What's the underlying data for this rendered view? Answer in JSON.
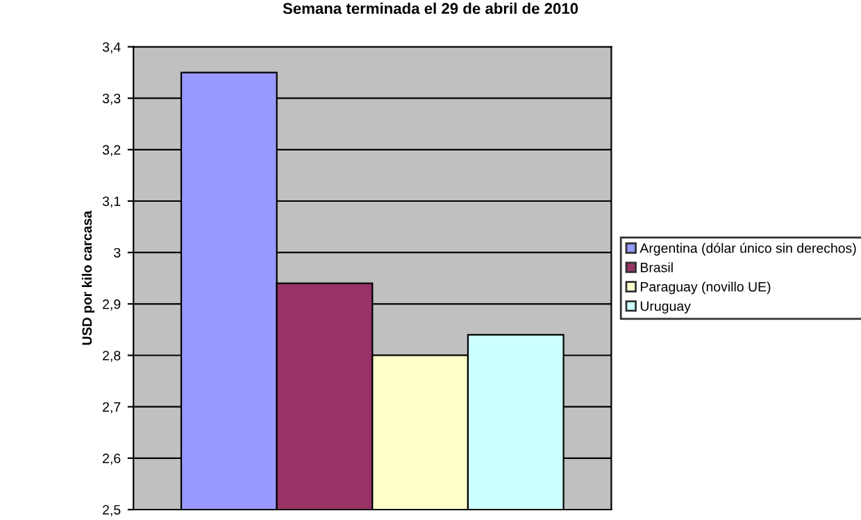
{
  "chart_data": {
    "type": "bar",
    "title": "Semana terminada el 29 de abril de 2010",
    "ylabel": "USD por kilo carcasa",
    "categories": [
      null
    ],
    "series": [
      {
        "name": "Argentina (dólar único sin derechos)",
        "color": "#9999ff",
        "values": [
          3.35
        ]
      },
      {
        "name": "Brasil",
        "color": "#993366",
        "values": [
          2.94
        ]
      },
      {
        "name": "Paraguay (novillo UE)",
        "color": "#ffffcc",
        "values": [
          2.8
        ]
      },
      {
        "name": "Uruguay",
        "color": "#ccffff",
        "values": [
          2.84
        ]
      }
    ],
    "ylim": [
      2.5,
      3.4
    ],
    "yticks": [
      {
        "value": 2.5,
        "label": "2,5"
      },
      {
        "value": 2.6,
        "label": "2,6"
      },
      {
        "value": 2.7,
        "label": "2,7"
      },
      {
        "value": 2.8,
        "label": "2,8"
      },
      {
        "value": 2.9,
        "label": "2,9"
      },
      {
        "value": 3,
        "label": "3"
      },
      {
        "value": 3.1,
        "label": "3,1"
      },
      {
        "value": 3.2,
        "label": "3,2"
      },
      {
        "value": 3.3,
        "label": "3,3"
      },
      {
        "value": 3.4,
        "label": "3,4"
      }
    ],
    "grid": "y",
    "legend": "right"
  }
}
